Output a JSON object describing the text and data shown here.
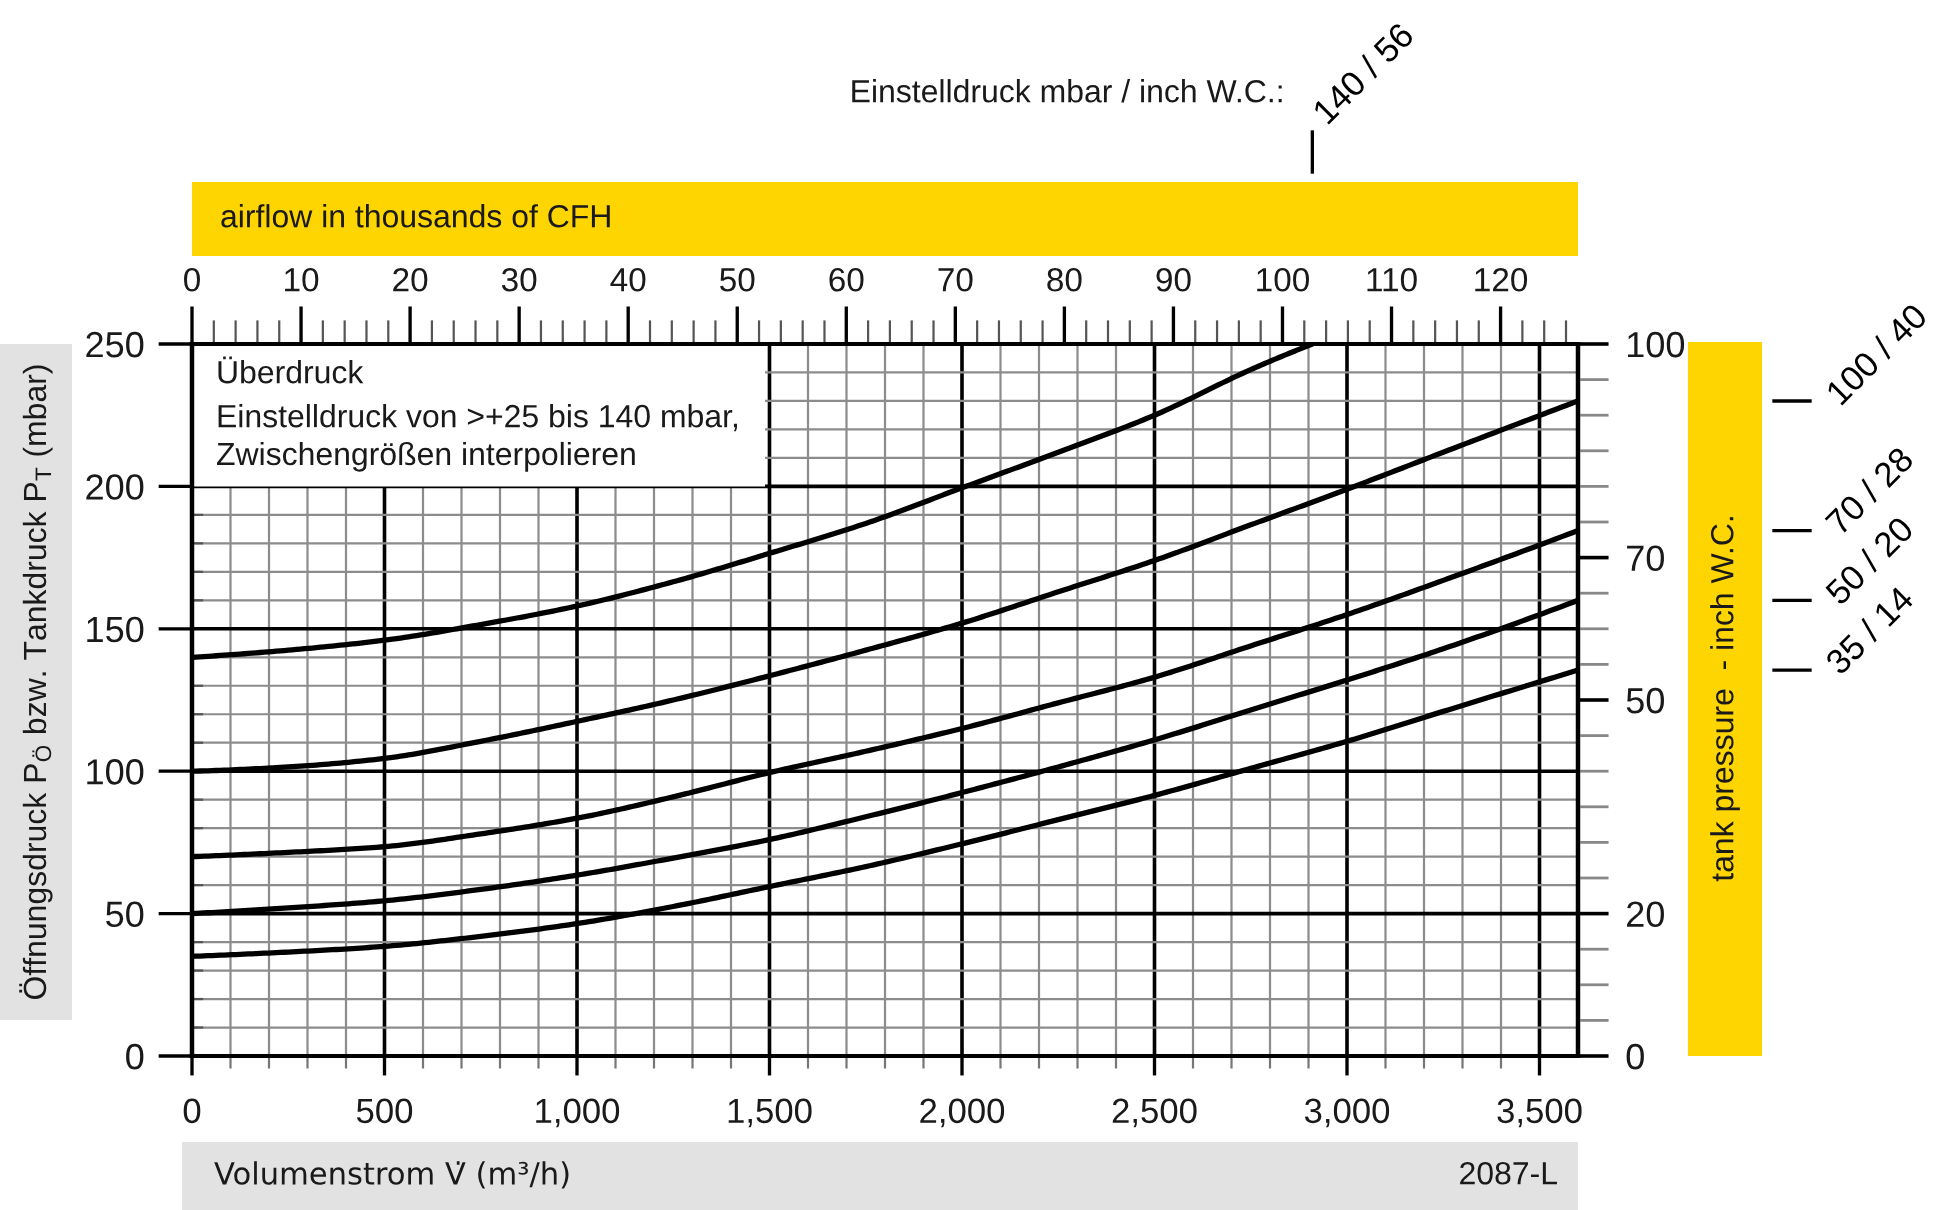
{
  "chart_data": {
    "type": "line",
    "subtitle": "Überdruck",
    "xlabel": "Volumenstrom V̇ (m³/h)",
    "ylabel": "Öffnungsdruck P$_{Ö}$ bzw. Tankdruck P$_{T}$ (mbar)",
    "x2label": "airflow in thousands of CFH",
    "y2label": "tank pressure  - inch W.C.",
    "legend_title": "Einstelldruck mbar / inch W.C.:",
    "annotations": [
      "Einstelldruck von >+25 bis 140 mbar,\nZwischengrößen interpolieren",
      "2087-L"
    ],
    "xlim": [
      0,
      3600
    ],
    "xticks": [
      0,
      {
        "value": 100,
        "label": null
      },
      {
        "value": 200,
        "label": null
      },
      {
        "value": 300,
        "label": null
      },
      {
        "value": 400,
        "label": null
      },
      500,
      {
        "value": 600,
        "label": null
      },
      {
        "value": 700,
        "label": null
      },
      {
        "value": 800,
        "label": null
      },
      {
        "value": 900,
        "label": null
      },
      {
        "value": 1000,
        "label": "1,000"
      },
      {
        "value": 1100,
        "label": null
      },
      {
        "value": 1200,
        "label": null
      },
      {
        "value": 1300,
        "label": null
      },
      {
        "value": 1400,
        "label": null
      },
      {
        "value": 1500,
        "label": "1,500"
      },
      {
        "value": 1600,
        "label": null
      },
      {
        "value": 1700,
        "label": null
      },
      {
        "value": 1800,
        "label": null
      },
      {
        "value": 1900,
        "label": null
      },
      {
        "value": 2000,
        "label": "2,000"
      },
      {
        "value": 2100,
        "label": null
      },
      {
        "value": 2200,
        "label": null
      },
      {
        "value": 2300,
        "label": null
      },
      {
        "value": 2400,
        "label": null
      },
      {
        "value": 2500,
        "label": "2,500"
      },
      {
        "value": 2600,
        "label": null
      },
      {
        "value": 2700,
        "label": null
      },
      {
        "value": 2800,
        "label": null
      },
      {
        "value": 2900,
        "label": null
      },
      {
        "value": 3000,
        "label": "3,000"
      },
      {
        "value": 3100,
        "label": null
      },
      {
        "value": 3200,
        "label": null
      },
      {
        "value": 3300,
        "label": null
      },
      {
        "value": 3400,
        "label": null
      },
      {
        "value": 3500,
        "label": "3,500"
      }
    ],
    "ylim": [
      0,
      250
    ],
    "yticks": [
      0,
      {
        "value": 10,
        "label": null
      },
      {
        "value": 20,
        "label": null
      },
      {
        "value": 30,
        "label": null
      },
      {
        "value": 40,
        "label": null
      },
      50,
      {
        "value": 60,
        "label": null
      },
      {
        "value": 70,
        "label": null
      },
      {
        "value": 80,
        "label": null
      },
      {
        "value": 90,
        "label": null
      },
      100,
      {
        "value": 110,
        "label": null
      },
      {
        "value": 120,
        "label": null
      },
      {
        "value": 130,
        "label": null
      },
      {
        "value": 140,
        "label": null
      },
      150,
      {
        "value": 160,
        "label": null
      },
      {
        "value": 170,
        "label": null
      },
      {
        "value": 180,
        "label": null
      },
      {
        "value": 190,
        "label": null
      },
      200,
      {
        "value": 210,
        "label": null
      },
      {
        "value": 220,
        "label": null
      },
      {
        "value": 230,
        "label": null
      },
      {
        "value": 240,
        "label": null
      },
      250
    ],
    "x2lim": [
      0,
      127.1
    ],
    "x2ticks": [
      0,
      {
        "value": 2,
        "label": null
      },
      {
        "value": 4,
        "label": null
      },
      {
        "value": 6,
        "label": null
      },
      {
        "value": 8,
        "label": null
      },
      10,
      {
        "value": 12,
        "label": null
      },
      {
        "value": 14,
        "label": null
      },
      {
        "value": 16,
        "label": null
      },
      {
        "value": 18,
        "label": null
      },
      20,
      {
        "value": 22,
        "label": null
      },
      {
        "value": 24,
        "label": null
      },
      {
        "value": 26,
        "label": null
      },
      {
        "value": 28,
        "label": null
      },
      30,
      {
        "value": 32,
        "label": null
      },
      {
        "value": 34,
        "label": null
      },
      {
        "value": 36,
        "label": null
      },
      {
        "value": 38,
        "label": null
      },
      40,
      {
        "value": 42,
        "label": null
      },
      {
        "value": 44,
        "label": null
      },
      {
        "value": 46,
        "label": null
      },
      {
        "value": 48,
        "label": null
      },
      50,
      {
        "value": 52,
        "label": null
      },
      {
        "value": 54,
        "label": null
      },
      {
        "value": 56,
        "label": null
      },
      {
        "value": 58,
        "label": null
      },
      60,
      {
        "value": 62,
        "label": null
      },
      {
        "value": 64,
        "label": null
      },
      {
        "value": 66,
        "label": null
      },
      {
        "value": 68,
        "label": null
      },
      70,
      {
        "value": 72,
        "label": null
      },
      {
        "value": 74,
        "label": null
      },
      {
        "value": 76,
        "label": null
      },
      {
        "value": 78,
        "label": null
      },
      80,
      {
        "value": 82,
        "label": null
      },
      {
        "value": 84,
        "label": null
      },
      {
        "value": 86,
        "label": null
      },
      {
        "value": 88,
        "label": null
      },
      90,
      {
        "value": 92,
        "label": null
      },
      {
        "value": 94,
        "label": null
      },
      {
        "value": 96,
        "label": null
      },
      {
        "value": 98,
        "label": null
      },
      100,
      {
        "value": 102,
        "label": null
      },
      {
        "value": 104,
        "label": null
      },
      {
        "value": 106,
        "label": null
      },
      {
        "value": 108,
        "label": null
      },
      110,
      {
        "value": 112,
        "label": null
      },
      {
        "value": 114,
        "label": null
      },
      {
        "value": 116,
        "label": null
      },
      {
        "value": 118,
        "label": null
      },
      120,
      {
        "value": 122,
        "label": null
      },
      {
        "value": 124,
        "label": null
      },
      {
        "value": 126,
        "label": null
      }
    ],
    "y2lim": [
      0,
      100
    ],
    "y2ticks": [
      0,
      {
        "value": 5,
        "label": null
      },
      {
        "value": 10,
        "label": null
      },
      {
        "value": 15,
        "label": null
      },
      20,
      {
        "value": 25,
        "label": null
      },
      {
        "value": 30,
        "label": null
      },
      {
        "value": 35,
        "label": null
      },
      {
        "value": 40,
        "label": null
      },
      {
        "value": 45,
        "label": null
      },
      50,
      {
        "value": 55,
        "label": null
      },
      {
        "value": 60,
        "label": null
      },
      {
        "value": 65,
        "label": null
      },
      70,
      {
        "value": 75,
        "label": null
      },
      {
        "value": 80,
        "label": null
      },
      {
        "value": 85,
        "label": null
      },
      {
        "value": 90,
        "label": null
      },
      {
        "value": 95,
        "label": null
      },
      100
    ],
    "grid": true,
    "line_style": "solid",
    "series": [
      {
        "name": "140 / 56",
        "color": "#000000",
        "x": [
          0,
          250,
          500,
          750,
          1000,
          1250,
          1500,
          1750,
          2000,
          2250,
          2500,
          2750,
          2910
        ],
        "values": [
          140,
          142.5,
          146,
          151.5,
          158,
          166.5,
          176.5,
          187,
          199.5,
          212,
          225,
          241,
          250
        ]
      },
      {
        "name": "100 / 40",
        "color": "#000000",
        "x": [
          0,
          250,
          500,
          750,
          1000,
          1250,
          1500,
          1750,
          2000,
          2250,
          2500,
          2750,
          3000,
          3250,
          3600
        ],
        "values": [
          100,
          101.5,
          104.5,
          110.5,
          117.5,
          125,
          133.5,
          142.5,
          152,
          163,
          174,
          186.5,
          199,
          212,
          230
        ]
      },
      {
        "name": "70 / 28",
        "color": "#000000",
        "x": [
          0,
          250,
          500,
          750,
          1000,
          1250,
          1500,
          1750,
          2000,
          2250,
          2500,
          2750,
          3000,
          3250,
          3600
        ],
        "values": [
          70,
          71.5,
          73.5,
          78,
          83.5,
          91,
          99.5,
          107,
          115,
          124,
          133,
          144,
          155,
          167,
          184.5
        ]
      },
      {
        "name": "50 / 20",
        "color": "#000000",
        "x": [
          0,
          250,
          500,
          750,
          1000,
          1250,
          1500,
          1750,
          2000,
          2250,
          2500,
          2750,
          3000,
          3250,
          3600
        ],
        "values": [
          50,
          52,
          54.5,
          58.5,
          63.5,
          69.5,
          76,
          84,
          92.5,
          101.5,
          111,
          121.5,
          132,
          143,
          160
        ]
      },
      {
        "name": "35 / 14",
        "color": "#000000",
        "x": [
          0,
          250,
          500,
          750,
          1000,
          1250,
          1500,
          1750,
          2000,
          2250,
          2500,
          2750,
          3000,
          3250,
          3600
        ],
        "values": [
          35,
          36.5,
          38.5,
          42,
          46.5,
          52.5,
          59.5,
          66.5,
          74.5,
          83,
          91.5,
          101,
          110.5,
          121,
          135.5
        ]
      }
    ]
  }
}
